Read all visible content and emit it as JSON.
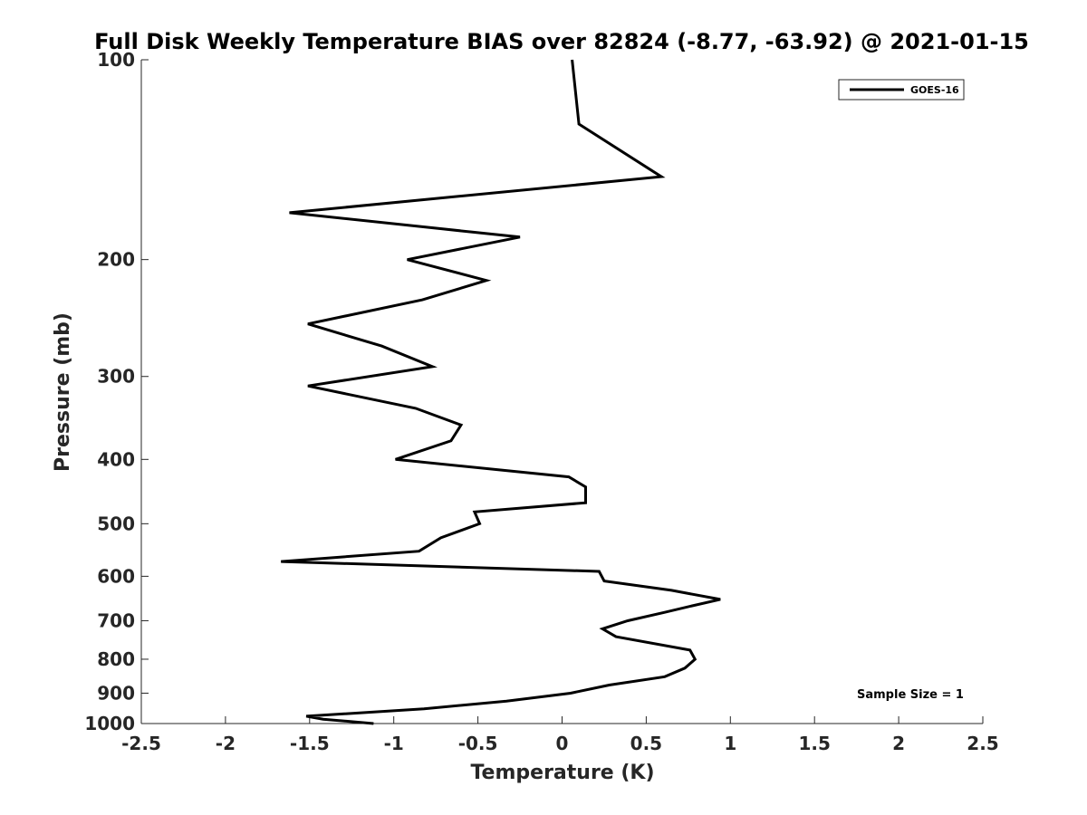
{
  "chart_data": {
    "type": "line",
    "title": "Full Disk Weekly Temperature BIAS over 82824 (-8.77, -63.92) @ 2021-01-15",
    "xlabel": "Temperature (K)",
    "ylabel": "Pressure (mb)",
    "xlim": [
      -2.5,
      2.5
    ],
    "ylim": [
      1000,
      100
    ],
    "yscale": "log",
    "y_reversed": true,
    "grid": false,
    "legend_position": "top-right",
    "line_color": "#000000",
    "x_ticks": [
      -2.5,
      -2,
      -1.5,
      -1,
      -0.5,
      0,
      0.5,
      1,
      1.5,
      2,
      2.5
    ],
    "x_tick_labels": [
      "-2.5",
      "-2",
      "-1.5",
      "-1",
      "-0.5",
      "0",
      "0.5",
      "1",
      "1.5",
      "2",
      "2.5"
    ],
    "y_ticks": [
      100,
      200,
      300,
      400,
      500,
      600,
      700,
      800,
      900,
      1000
    ],
    "y_tick_labels": [
      "100",
      "200",
      "300",
      "400",
      "500",
      "600",
      "700",
      "800",
      "900",
      "1000"
    ],
    "series": [
      {
        "name": "GOES-16",
        "points": [
          {
            "x": 0.06,
            "y": 100
          },
          {
            "x": 0.1,
            "y": 125
          },
          {
            "x": 0.59,
            "y": 150
          },
          {
            "x": -1.62,
            "y": 170
          },
          {
            "x": -0.25,
            "y": 185
          },
          {
            "x": -0.92,
            "y": 200
          },
          {
            "x": -0.45,
            "y": 215
          },
          {
            "x": -0.83,
            "y": 230
          },
          {
            "x": -1.51,
            "y": 250
          },
          {
            "x": -1.07,
            "y": 270
          },
          {
            "x": -0.77,
            "y": 290
          },
          {
            "x": -1.51,
            "y": 310
          },
          {
            "x": -0.87,
            "y": 335
          },
          {
            "x": -0.6,
            "y": 355
          },
          {
            "x": -0.66,
            "y": 375
          },
          {
            "x": -0.99,
            "y": 400
          },
          {
            "x": 0.04,
            "y": 425
          },
          {
            "x": 0.14,
            "y": 440
          },
          {
            "x": 0.14,
            "y": 465
          },
          {
            "x": -0.52,
            "y": 480
          },
          {
            "x": -0.49,
            "y": 500
          },
          {
            "x": -0.72,
            "y": 525
          },
          {
            "x": -0.85,
            "y": 550
          },
          {
            "x": -1.67,
            "y": 570
          },
          {
            "x": 0.22,
            "y": 590
          },
          {
            "x": 0.25,
            "y": 610
          },
          {
            "x": 0.65,
            "y": 630
          },
          {
            "x": 0.94,
            "y": 650
          },
          {
            "x": 0.77,
            "y": 665
          },
          {
            "x": 0.61,
            "y": 680
          },
          {
            "x": 0.39,
            "y": 700
          },
          {
            "x": 0.24,
            "y": 720
          },
          {
            "x": 0.32,
            "y": 740
          },
          {
            "x": 0.76,
            "y": 775
          },
          {
            "x": 0.79,
            "y": 800
          },
          {
            "x": 0.73,
            "y": 825
          },
          {
            "x": 0.61,
            "y": 850
          },
          {
            "x": 0.28,
            "y": 875
          },
          {
            "x": 0.05,
            "y": 900
          },
          {
            "x": -0.33,
            "y": 925
          },
          {
            "x": -0.82,
            "y": 950
          },
          {
            "x": -1.52,
            "y": 975
          },
          {
            "x": -1.42,
            "y": 985
          },
          {
            "x": -1.12,
            "y": 1000
          }
        ]
      }
    ],
    "annotations": [
      {
        "text": "Sample Size = 1"
      }
    ]
  }
}
